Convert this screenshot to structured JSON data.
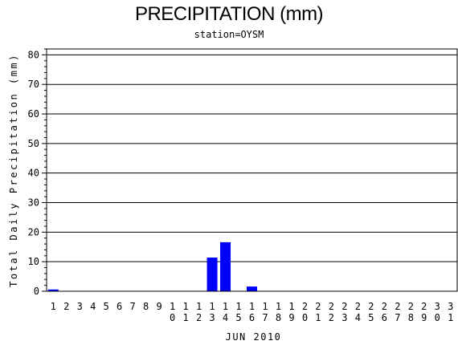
{
  "chart_data": {
    "type": "bar",
    "title": "PRECIPITATION (mm)",
    "subtitle": "station=OYSM",
    "ylabel": "Total Daily Precipitation (mm)",
    "xlabel": "JUN 2010",
    "ylim": [
      0,
      82
    ],
    "yticks": [
      "0",
      "10",
      "20",
      "30",
      "40",
      "50",
      "60",
      "70",
      "80"
    ],
    "grid": true,
    "bar_color": "#0000ff",
    "categories": [
      "1",
      "2",
      "3",
      "4",
      "5",
      "6",
      "7",
      "8",
      "9",
      "10",
      "11",
      "12",
      "13",
      "14",
      "15",
      "16",
      "17",
      "18",
      "19",
      "20",
      "21",
      "22",
      "23",
      "24",
      "25",
      "26",
      "27",
      "28",
      "29",
      "30",
      "31"
    ],
    "values": [
      0.6,
      0,
      0,
      0,
      0,
      0,
      0,
      0,
      0,
      0,
      0,
      0,
      11.4,
      16.6,
      0,
      1.6,
      0,
      0,
      0,
      0,
      0,
      0,
      0,
      0,
      0,
      0,
      0,
      0,
      0,
      0,
      0
    ]
  }
}
